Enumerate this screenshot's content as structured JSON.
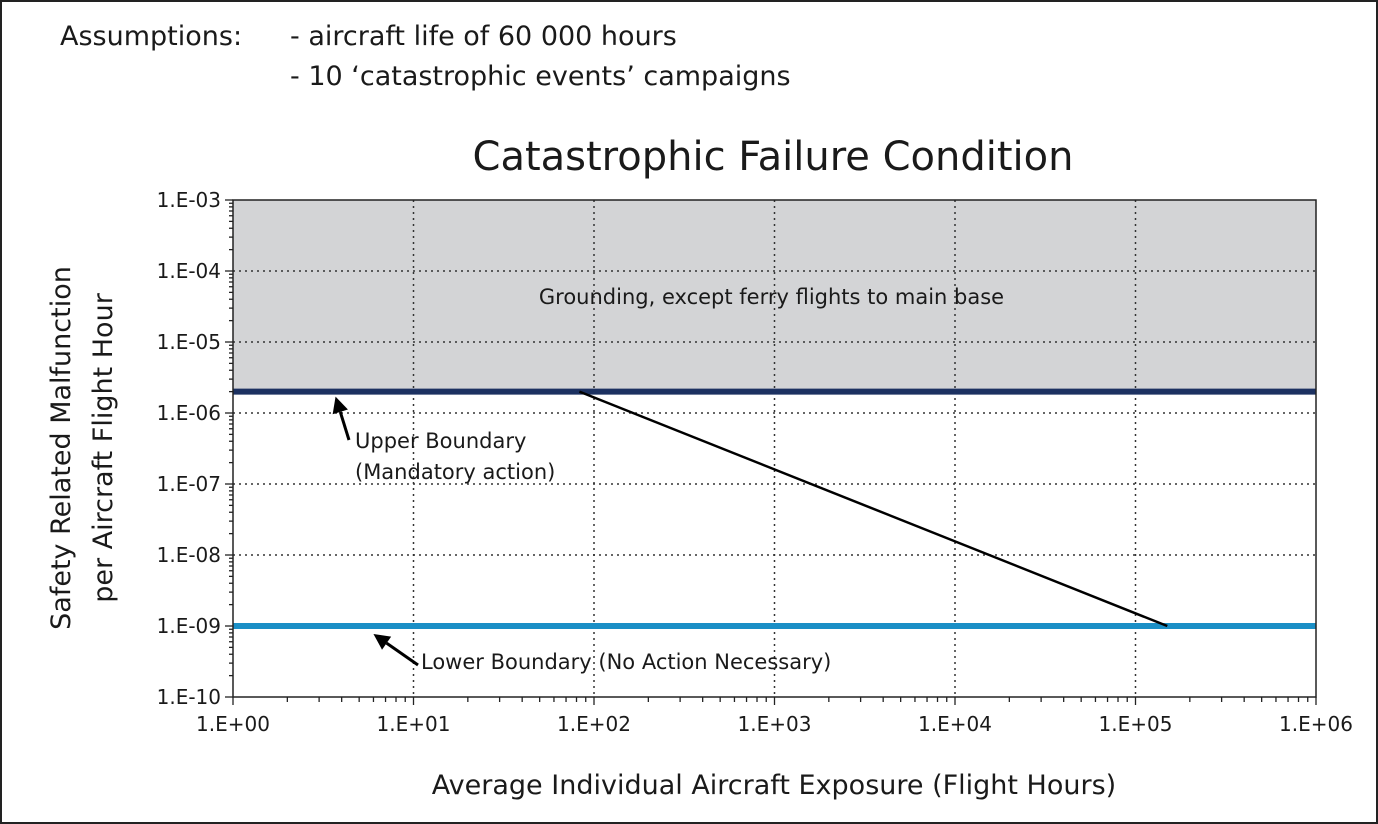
{
  "assumptions": {
    "label": "Assumptions:",
    "items": [
      "- aircraft life of 60 000 hours",
      "- 10 ‘catastrophic events’ campaigns"
    ]
  },
  "colors": {
    "grounding_zone": "#d3d4d6",
    "upper_boundary": "#1c3161",
    "lower_boundary": "#1a8fc6",
    "trend_line": "#000000",
    "grid": "#333333"
  },
  "chart_data": {
    "type": "line",
    "title": "Catastrophic Failure Condition",
    "xlabel": "Average Individual Aircraft Exposure (Flight Hours)",
    "ylabel": [
      "Safety Related Malfunction",
      "per Aircraft Flight Hour"
    ],
    "xscale": "log",
    "yscale": "log",
    "xlim": [
      1,
      1000000
    ],
    "ylim": [
      1e-10,
      0.001
    ],
    "grid": true,
    "x_ticks": [
      {
        "value": 1,
        "label": "1.E+00"
      },
      {
        "value": 10,
        "label": "1.E+01"
      },
      {
        "value": 100,
        "label": "1.E+02"
      },
      {
        "value": 1000,
        "label": "1.E+03"
      },
      {
        "value": 10000,
        "label": "1.E+04"
      },
      {
        "value": 100000,
        "label": "1.E+05"
      },
      {
        "value": 1000000,
        "label": "1.E+06"
      }
    ],
    "y_ticks": [
      {
        "value": 0.001,
        "label": "1.E-03"
      },
      {
        "value": 0.0001,
        "label": "1.E-04"
      },
      {
        "value": 1e-05,
        "label": "1.E-05"
      },
      {
        "value": 1e-06,
        "label": "1.E-06"
      },
      {
        "value": 1e-07,
        "label": "1.E-07"
      },
      {
        "value": 1e-08,
        "label": "1.E-08"
      },
      {
        "value": 1e-09,
        "label": "1.E-09"
      },
      {
        "value": 1e-10,
        "label": "1.E-10"
      }
    ],
    "regions": [
      {
        "label": "Grounding, except ferry flights to main base",
        "y_from": 2e-06,
        "y_to": 0.001
      }
    ],
    "series": [
      {
        "name": "Upper Boundary (Mandatory action)",
        "kind": "hline",
        "y": 2e-06
      },
      {
        "name": "Lower Boundary (No Action Necessary)",
        "kind": "hline",
        "y": 1e-09
      },
      {
        "kind": "line",
        "x": [
          83,
          150000
        ],
        "y": [
          2e-06,
          1e-09
        ]
      }
    ],
    "annotations": [
      {
        "lines": [
          "Upper Boundary",
          "(Mandatory action)"
        ],
        "arrow_to": {
          "x": 3.7,
          "y": 2e-06
        },
        "at": {
          "x": 7,
          "y": 3.5e-07
        }
      },
      {
        "lines": [
          "Lower Boundary (No Action Necessary)"
        ],
        "arrow_to": {
          "x": 6,
          "y": 1e-09
        },
        "at": {
          "x": 11,
          "y": 3.5e-10
        }
      }
    ]
  }
}
